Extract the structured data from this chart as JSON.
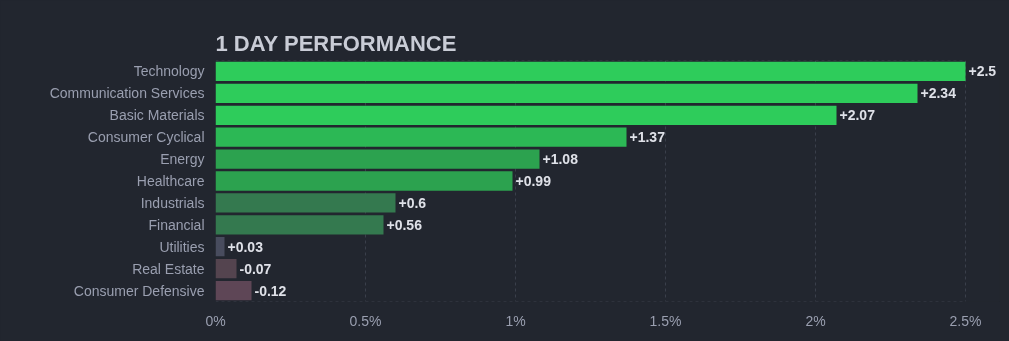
{
  "chart_data": {
    "type": "bar",
    "orientation": "horizontal",
    "title": "1 DAY PERFORMANCE",
    "categories": [
      "Technology",
      "Communication Services",
      "Basic Materials",
      "Consumer Cyclical",
      "Energy",
      "Healthcare",
      "Industrials",
      "Financial",
      "Utilities",
      "Real Estate",
      "Consumer Defensive"
    ],
    "values": [
      2.5,
      2.34,
      2.07,
      1.37,
      1.08,
      0.99,
      0.6,
      0.56,
      0.03,
      -0.07,
      -0.12
    ],
    "base": [
      0,
      0,
      0,
      0,
      0,
      0,
      0,
      0,
      0,
      0.07,
      0.12
    ],
    "value_labels": [
      "+2.5",
      "+2.34",
      "+2.07",
      "+1.37",
      "+1.08",
      "+0.99",
      "+0.6",
      "+0.56",
      "+0.03",
      "-0.07",
      "-0.12"
    ],
    "colors": [
      "#2ecc5b",
      "#2ecc5b",
      "#2ecc5b",
      "#2cb855",
      "#2ca24f",
      "#2ca24f",
      "#34794f",
      "#34794f",
      "#484c5e",
      "#54444f",
      "#5e4656"
    ],
    "xlim": [
      0,
      2.5
    ],
    "xticks": [
      {
        "value": 0,
        "label": "0%"
      },
      {
        "value": 0.5,
        "label": "0.5%"
      },
      {
        "value": 1,
        "label": "1%"
      },
      {
        "value": 1.5,
        "label": "1.5%"
      },
      {
        "value": 2,
        "label": "2%"
      },
      {
        "value": 2.5,
        "label": "2.5%"
      }
    ],
    "grid": "x"
  }
}
